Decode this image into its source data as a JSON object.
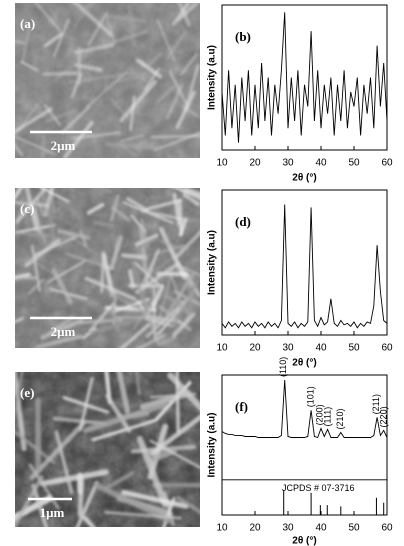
{
  "panels": [
    {
      "label": "(a)",
      "scale_bar": "2μm"
    },
    {
      "label": "(c)",
      "scale_bar": "2μm"
    },
    {
      "label": "(e)",
      "scale_bar": "1μm"
    }
  ],
  "chart_data": [
    {
      "type": "line",
      "panel_label": "(b)",
      "x_label": "2θ (°)",
      "y_label": "Intensity (a.u)",
      "xlim": [
        10,
        60
      ],
      "xticks": [
        10,
        20,
        30,
        40,
        50,
        60
      ],
      "ylim": [
        0,
        100
      ],
      "x": [
        10,
        11,
        12,
        13,
        14,
        15,
        16,
        17,
        18,
        19,
        20,
        21,
        22,
        23,
        24,
        25,
        26,
        27,
        28,
        29,
        30,
        31,
        32,
        33,
        34,
        35,
        36,
        37,
        38,
        39,
        40,
        41,
        42,
        43,
        44,
        45,
        46,
        47,
        48,
        49,
        50,
        51,
        52,
        53,
        54,
        55,
        56,
        57,
        58,
        59,
        60
      ],
      "series": [
        {
          "color": "#000000",
          "values": [
            40,
            10,
            55,
            15,
            45,
            5,
            50,
            20,
            55,
            10,
            45,
            15,
            60,
            20,
            50,
            10,
            45,
            25,
            55,
            95,
            15,
            50,
            20,
            55,
            10,
            45,
            30,
            82,
            20,
            55,
            15,
            45,
            25,
            50,
            10,
            45,
            20,
            55,
            15,
            40,
            30,
            50,
            10,
            45,
            25,
            50,
            15,
            72,
            30,
            60,
            20
          ]
        }
      ]
    },
    {
      "type": "line",
      "panel_label": "(d)",
      "x_label": "2θ (°)",
      "y_label": "Intensity (a.u)",
      "xlim": [
        10,
        60
      ],
      "xticks": [
        10,
        20,
        30,
        40,
        50,
        60
      ],
      "ylim": [
        0,
        100
      ],
      "x": [
        10,
        11,
        12,
        13,
        14,
        15,
        16,
        17,
        18,
        19,
        20,
        21,
        22,
        23,
        24,
        25,
        26,
        27,
        28,
        29,
        30,
        31,
        32,
        33,
        34,
        35,
        36,
        37,
        38,
        39,
        40,
        41,
        42,
        43,
        44,
        45,
        46,
        47,
        48,
        49,
        50,
        51,
        52,
        53,
        54,
        55,
        56,
        57,
        58,
        59,
        60
      ],
      "series": [
        {
          "color": "#000000",
          "values": [
            8,
            5,
            9,
            6,
            8,
            5,
            9,
            6,
            8,
            5,
            9,
            6,
            8,
            5,
            9,
            6,
            8,
            5,
            10,
            90,
            8,
            6,
            9,
            5,
            8,
            6,
            9,
            88,
            10,
            6,
            12,
            7,
            9,
            25,
            8,
            6,
            10,
            7,
            8,
            6,
            9,
            5,
            8,
            6,
            9,
            8,
            20,
            62,
            30,
            10,
            8
          ]
        }
      ]
    },
    {
      "type": "line",
      "panel_label": "(f)",
      "x_label": "2θ (°)",
      "y_label": "Intensity (a.u)",
      "xlim": [
        10,
        60
      ],
      "xticks": [
        10,
        20,
        30,
        40,
        50,
        60
      ],
      "ylim": [
        0,
        100
      ],
      "x": [
        10,
        11,
        12,
        13,
        14,
        15,
        16,
        17,
        18,
        19,
        20,
        21,
        22,
        23,
        24,
        25,
        26,
        27,
        28,
        29,
        30,
        31,
        32,
        33,
        34,
        35,
        36,
        37,
        38,
        39,
        40,
        41,
        42,
        43,
        44,
        45,
        46,
        47,
        48,
        49,
        50,
        51,
        52,
        53,
        54,
        55,
        56,
        57,
        58,
        59,
        60
      ],
      "series": [
        {
          "color": "#000000",
          "values": [
            44,
            42,
            41,
            41,
            40,
            40,
            40,
            39,
            39,
            39,
            39,
            38,
            38,
            38,
            38,
            38,
            38,
            38,
            40,
            95,
            39,
            38,
            38,
            38,
            38,
            38,
            39,
            65,
            39,
            38,
            47,
            39,
            46,
            38,
            38,
            38,
            43,
            38,
            38,
            38,
            38,
            38,
            38,
            38,
            38,
            38,
            40,
            58,
            40,
            45,
            38
          ]
        }
      ],
      "annotations": [
        {
          "x": 28.7,
          "text": "(110)"
        },
        {
          "x": 37.0,
          "text": "(101)"
        },
        {
          "x": 39.8,
          "text": "(200)"
        },
        {
          "x": 42.2,
          "text": "(111)"
        },
        {
          "x": 46.0,
          "text": "(210)"
        },
        {
          "x": 56.8,
          "text": "(211)"
        },
        {
          "x": 59.2,
          "text": "(220)"
        }
      ],
      "reference": {
        "label": "JCPDS # 07-3716",
        "x": [
          28.7,
          37.0,
          39.8,
          41.9,
          46.0,
          56.8,
          59.0
        ],
        "values": [
          20,
          18,
          8,
          8,
          7,
          14,
          10
        ]
      }
    }
  ]
}
